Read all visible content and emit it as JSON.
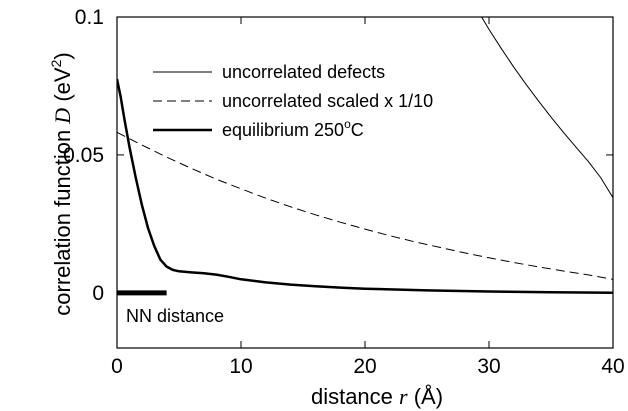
{
  "chart_data": {
    "type": "line",
    "xlabel_prefix": "distance",
    "xlabel_var": "r",
    "xlabel_unit": "(Å)",
    "ylabel_prefix": "correlation function",
    "ylabel_var": "D",
    "ylabel_unit_base": "(eV",
    "ylabel_unit_exp": "2",
    "ylabel_unit_close": ")",
    "xlim": [
      0,
      40
    ],
    "ylim": [
      -0.02,
      0.1
    ],
    "x_ticks": [
      0,
      10,
      20,
      30,
      40
    ],
    "x_tick_labels": [
      "0",
      "10",
      "20",
      "30",
      "40"
    ],
    "y_ticks": [
      0,
      0.05,
      0.1
    ],
    "y_tick_labels": [
      "0",
      "0.05",
      "0.1"
    ],
    "grid": false,
    "legend_position": "top-right",
    "series": [
      {
        "name": "uncorrelated defects",
        "style": "thin-solid",
        "x": [
          29.4,
          30,
          31,
          32,
          33,
          34,
          35,
          36,
          37,
          38,
          39,
          40
        ],
        "y": [
          0.1,
          0.0955,
          0.0885,
          0.0818,
          0.0755,
          0.0695,
          0.0637,
          0.0582,
          0.0529,
          0.0477,
          0.0418,
          0.0345
        ]
      },
      {
        "name": "uncorrelated scaled x 1/10",
        "style": "dashed",
        "x": [
          0,
          2,
          4,
          6,
          8,
          10,
          12,
          14,
          16,
          18,
          20,
          22,
          24,
          26,
          28,
          30,
          32,
          34,
          36,
          38,
          40
        ],
        "y": [
          0.0582,
          0.0536,
          0.0492,
          0.0451,
          0.0412,
          0.0377,
          0.0343,
          0.0312,
          0.0283,
          0.0256,
          0.0231,
          0.0207,
          0.0185,
          0.0165,
          0.0145,
          0.0127,
          0.011,
          0.0094,
          0.0079,
          0.0065,
          0.0049
        ]
      },
      {
        "name": "equilibrium 250",
        "name_sup": "o",
        "name_suffix": "C",
        "style": "thick-solid",
        "x": [
          0,
          0.3,
          0.6,
          1,
          1.5,
          2,
          2.5,
          3,
          3.5,
          4,
          4.5,
          5,
          6,
          7,
          8,
          9,
          10,
          12,
          14,
          16,
          18,
          20,
          25,
          30,
          35,
          40
        ],
        "y": [
          0.0775,
          0.071,
          0.063,
          0.053,
          0.042,
          0.032,
          0.0235,
          0.017,
          0.012,
          0.0095,
          0.0083,
          0.0078,
          0.0074,
          0.0071,
          0.0066,
          0.0058,
          0.0049,
          0.0038,
          0.003,
          0.0024,
          0.0019,
          0.0015,
          0.0009,
          0.0005,
          0.0002,
          0
        ]
      }
    ],
    "annotation": {
      "label": "NN distance",
      "x_range": [
        0,
        4
      ],
      "y": 0
    }
  }
}
